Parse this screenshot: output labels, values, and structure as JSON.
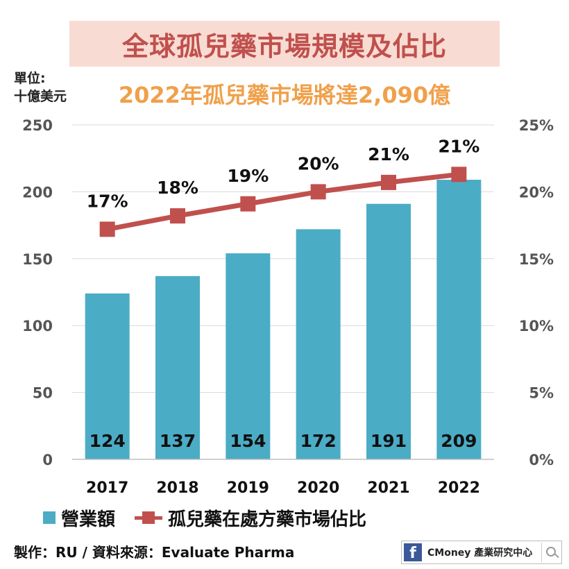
{
  "header": {
    "title": "全球孤兒藥市場規模及佔比",
    "subtitle": "2022年孤兒藥市場將達2,090億",
    "unit_line1": "單位:",
    "unit_line2": "十億美元"
  },
  "colors": {
    "bar": "#4bacc6",
    "line": "#c0504d",
    "title": "#c0504d",
    "subtitle": "#f0a04b",
    "title_bg": "#f8dcd3"
  },
  "chart_data": {
    "type": "bar",
    "categories": [
      "2017",
      "2018",
      "2019",
      "2020",
      "2021",
      "2022"
    ],
    "series": [
      {
        "name": "營業額",
        "type": "bar",
        "axis": "left",
        "values": [
          124,
          137,
          154,
          172,
          191,
          209
        ],
        "labels": [
          "124",
          "137",
          "154",
          "172",
          "191",
          "209"
        ]
      },
      {
        "name": "孤兒藥在處方藥市場佔比",
        "type": "line",
        "axis": "right",
        "values": [
          17.2,
          18.2,
          19.1,
          20.0,
          20.7,
          21.3
        ],
        "labels": [
          "17%",
          "18%",
          "19%",
          "20%",
          "21%",
          "21%"
        ]
      }
    ],
    "y_left": {
      "lim": [
        0,
        250
      ],
      "ticks": [
        "0",
        "50",
        "100",
        "150",
        "200",
        "250"
      ]
    },
    "y_right": {
      "lim": [
        0,
        25
      ],
      "ticks": [
        "0%",
        "5%",
        "10%",
        "15%",
        "20%",
        "25%"
      ]
    },
    "grid": true,
    "legend": "bottom-left"
  },
  "legend": {
    "bar_label": "營業額",
    "line_label": "孤兒藥在處方藥市場佔比"
  },
  "footer": {
    "credit": "製作：RU / 資料來源：Evaluate Pharma"
  },
  "brand": {
    "icon": "facebook-icon",
    "text": "CMoney 產業研究中心",
    "search_icon": "search-icon"
  }
}
